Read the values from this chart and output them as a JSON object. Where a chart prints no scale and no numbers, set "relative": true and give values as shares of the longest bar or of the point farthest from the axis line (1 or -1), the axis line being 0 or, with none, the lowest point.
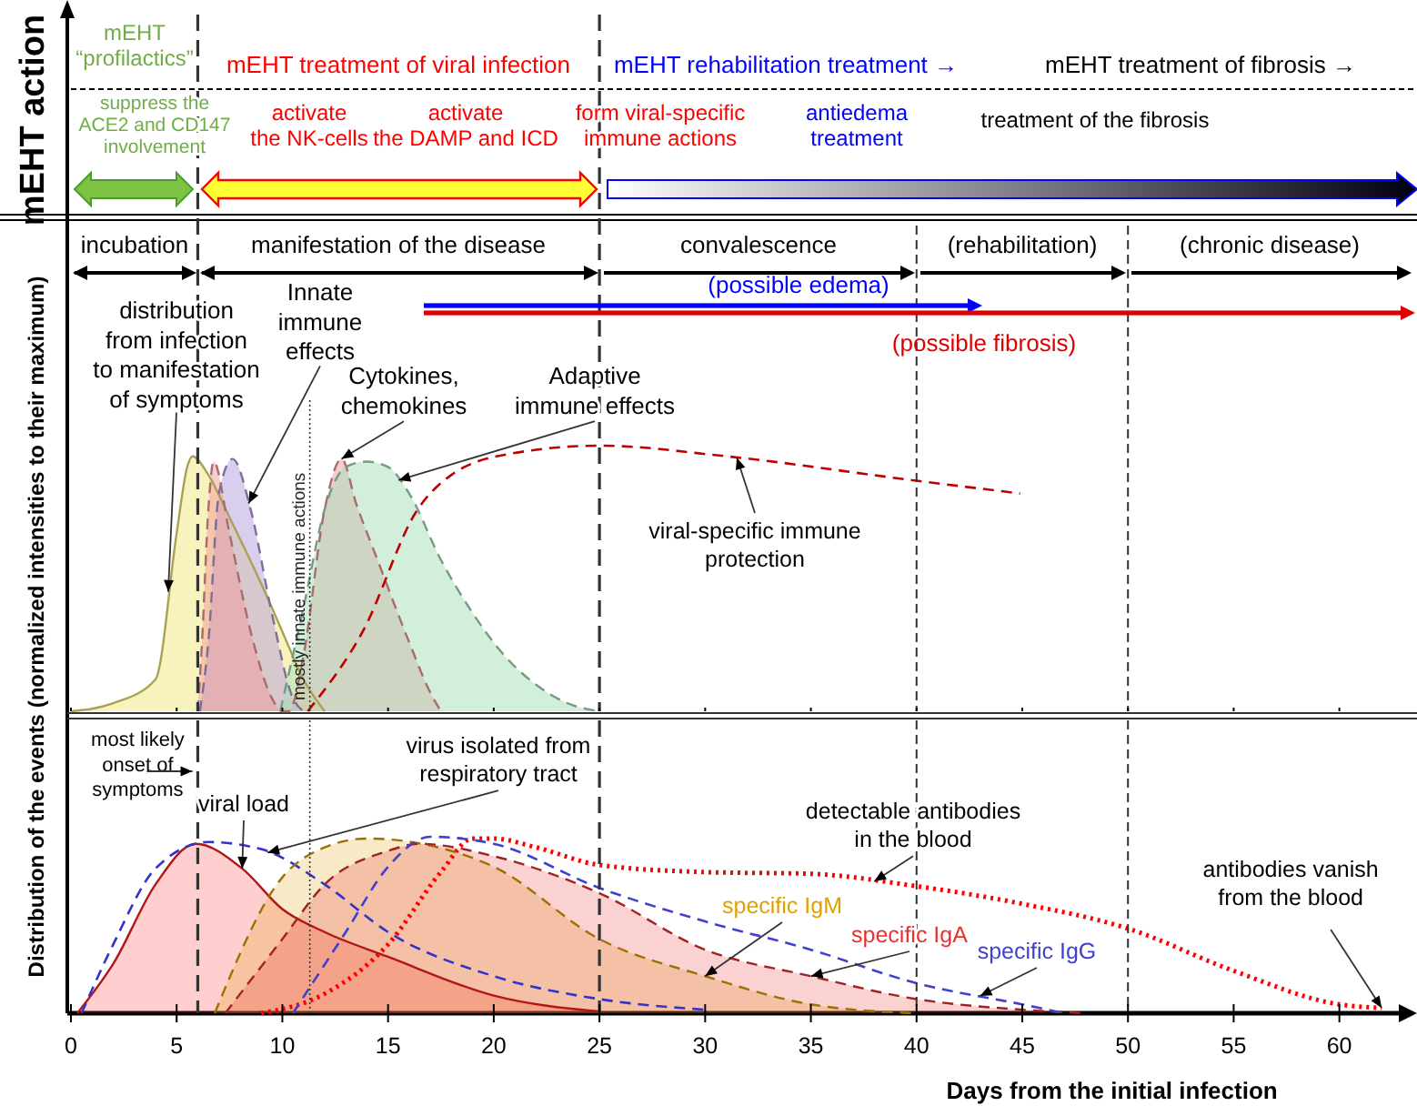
{
  "chart_data": [
    {
      "type": "other",
      "ylabel": "mEHT action",
      "annotations": [
        "mEHT\n“profilactics”",
        "mEHT treatment of viral infection",
        "mEHT rehabilitation treatment →",
        "mEHT treatment of fibrosis →",
        "suppress the\nACE2 and CD147\ninvolvement",
        "activate\nthe NK-cells",
        "activate\nthe DAMP and ICD",
        "form viral-specific\nimmune actions",
        "antiedema\ntreatment",
        "treatment of the fibrosis"
      ]
    },
    {
      "type": "area",
      "relative": true,
      "ylabel": "Distribution of the events  (normalized intensities to their maximum)",
      "xlim": [
        0,
        63.5
      ],
      "xticks": [
        0,
        5,
        10,
        15,
        20,
        25,
        30,
        35,
        40,
        45,
        50,
        55,
        60
      ],
      "tick_labels": false,
      "annotations": [
        "incubation",
        "manifestation of the disease",
        "convalescence",
        "(rehabilitation)",
        "(chronic disease)",
        "(possible edema)",
        "(possible fibrosis)"
      ],
      "ref_lines": [
        {
          "axis": "x",
          "value": 6,
          "line_style": "dashed"
        },
        {
          "axis": "x",
          "value": 25,
          "line_style": "dashed"
        },
        {
          "axis": "x",
          "value": 40,
          "line_style": "dashed"
        },
        {
          "axis": "x",
          "value": 50,
          "line_style": "dashed"
        },
        {
          "axis": "x",
          "value": 11.3,
          "line_style": "dotted",
          "label": "mostly innate  immune actions"
        }
      ],
      "series": [
        {
          "name": "distribution\nfrom infection\nto manifestation\nof symptoms",
          "color": "#f2e67a",
          "line_style": "solid",
          "x": [
            0,
            2,
            4,
            5,
            5.5,
            5.75,
            6.5,
            7.5,
            9,
            10,
            11,
            12
          ],
          "values": [
            0,
            0.03,
            0.12,
            0.67,
            0.92,
            0.96,
            0.89,
            0.73,
            0.48,
            0.3,
            0.12,
            0
          ]
        },
        {
          "name": "Innate\nimmune\neffects",
          "color": "#b39ddb",
          "line_style": "dashed",
          "x": [
            6.1,
            6.5,
            7,
            7.65,
            8.5,
            9.5,
            10.5,
            11
          ],
          "values": [
            0,
            0.26,
            0.82,
            0.95,
            0.76,
            0.37,
            0.05,
            0
          ]
        },
        {
          "name": "Cytokines,\nchemokines",
          "color": "#ef9a9a",
          "line_style": "dashed",
          "x": [
            6,
            6.2,
            6.5,
            6.75,
            7.5,
            8.5,
            9.5,
            10,
            10.3,
            11,
            12,
            12.8,
            13.5,
            14.5,
            16,
            17,
            17.5
          ],
          "values": [
            0,
            0.26,
            0.76,
            0.94,
            0.67,
            0.3,
            0.05,
            0,
            0,
            0.21,
            0.76,
            0.95,
            0.78,
            0.57,
            0.26,
            0.07,
            0
          ]
        },
        {
          "name": "Adaptive\nimmune effects",
          "color": "#a5dfb9",
          "line_style": "dashed",
          "x": [
            9.9,
            11,
            12,
            13,
            14,
            15,
            16,
            17.5,
            19,
            20.5,
            22,
            23.5,
            25
          ],
          "values": [
            0,
            0.39,
            0.76,
            0.92,
            0.94,
            0.92,
            0.82,
            0.57,
            0.37,
            0.21,
            0.1,
            0.03,
            0
          ]
        },
        {
          "name": "viral-specific immune\nprotection",
          "type": "line",
          "color": "#c00000",
          "line_style": "dashed",
          "x": [
            11.2,
            13.8,
            16.4,
            18,
            20.8,
            25,
            31,
            39.8,
            44.9
          ],
          "values": [
            0,
            0.3,
            0.76,
            0.89,
            0.97,
            1,
            0.96,
            0.87,
            0.82
          ]
        }
      ]
    },
    {
      "type": "area",
      "relative": true,
      "xlabel": "Days from the initial infection",
      "xlim": [
        0,
        63.5
      ],
      "xticks": [
        0,
        5,
        10,
        15,
        20,
        25,
        30,
        35,
        40,
        45,
        50,
        55,
        60
      ],
      "tick_labels": "x",
      "ref_lines": [
        {
          "axis": "x",
          "value": 6,
          "line_style": "dashed",
          "label": "most likely\nonset of\nsymptoms"
        },
        {
          "axis": "x",
          "value": 25,
          "line_style": "dashed"
        },
        {
          "axis": "x",
          "value": 40,
          "line_style": "dashed"
        },
        {
          "axis": "x",
          "value": 50,
          "line_style": "dashed"
        },
        {
          "axis": "x",
          "value": 11.3,
          "line_style": "dotted"
        }
      ],
      "annotations": [
        {
          "text": "antibodies vanish\nfrom the blood",
          "x": 62,
          "y": 0.03
        }
      ],
      "series": [
        {
          "name": "detectable antibodies\nin the blood",
          "type": "line",
          "color": "#ff0000",
          "line_style": "dotted",
          "x": [
            9,
            12,
            15,
            17.5,
            19,
            20,
            22,
            25,
            30,
            35,
            40,
            45,
            50,
            55,
            60,
            62
          ],
          "values": [
            0,
            0.11,
            0.39,
            0.8,
            0.99,
            0.99,
            0.94,
            0.84,
            0.8,
            0.79,
            0.72,
            0.62,
            0.48,
            0.24,
            0.05,
            0.03
          ]
        },
        {
          "name": "viral load",
          "color": "#ff2020",
          "line_style": "solid",
          "x": [
            0.3,
            2,
            4,
            5.9,
            8.1,
            10,
            12,
            15,
            20,
            25
          ],
          "values": [
            0,
            0.28,
            0.73,
            0.96,
            0.82,
            0.59,
            0.46,
            0.32,
            0.1,
            0.01
          ]
        },
        {
          "name": "virus isolated from\nrespiratory tract",
          "type": "line",
          "color": "#3333cc",
          "line_style": "dashed",
          "x": [
            0.5,
            2,
            4,
            6.5,
            9,
            12,
            15,
            20,
            25,
            30
          ],
          "values": [
            0,
            0.39,
            0.82,
            0.97,
            0.93,
            0.73,
            0.46,
            0.21,
            0.08,
            0.02
          ]
        },
        {
          "name": "specific IgM",
          "color": "#e0a000",
          "line_style": "dashed",
          "x": [
            6.8,
            10,
            12,
            14,
            17,
            20,
            25,
            30,
            35,
            40
          ],
          "values": [
            0,
            0.77,
            0.94,
            0.99,
            0.95,
            0.83,
            0.42,
            0.21,
            0.05,
            0
          ]
        },
        {
          "name": "specific IgA",
          "color": "#e83030",
          "line_style": "dashed",
          "x": [
            7.3,
            10,
            12,
            15,
            16.5,
            20,
            25,
            30,
            35,
            40,
            45,
            48
          ],
          "values": [
            0,
            0.42,
            0.73,
            0.92,
            0.96,
            0.89,
            0.68,
            0.36,
            0.21,
            0.08,
            0.02,
            0
          ]
        },
        {
          "name": "specific IgG",
          "type": "line",
          "color": "#4040d0",
          "line_style": "dashed",
          "x": [
            10.5,
            13,
            15,
            17,
            20,
            25,
            30,
            35,
            40,
            45,
            47
          ],
          "values": [
            0,
            0.46,
            0.83,
            1,
            0.96,
            0.71,
            0.52,
            0.36,
            0.17,
            0.05,
            0
          ]
        }
      ]
    }
  ]
}
